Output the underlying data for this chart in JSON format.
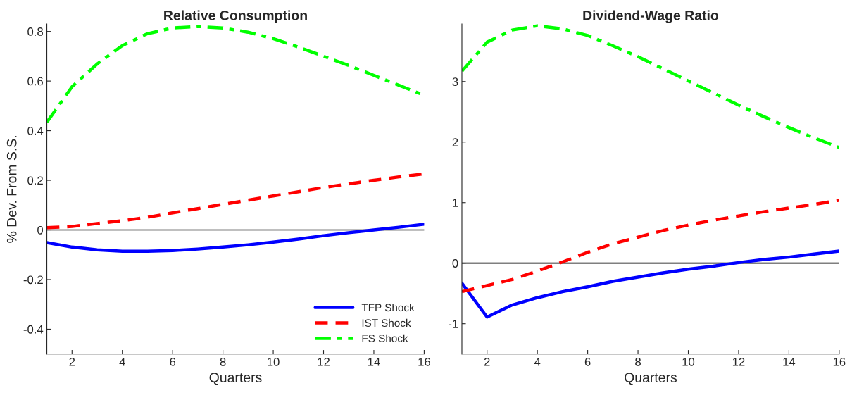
{
  "chart_data": [
    {
      "type": "line",
      "title": "Relative Consumption",
      "xlabel": "Quarters",
      "ylabel": "% Dev. From S.S.",
      "x": [
        1,
        2,
        3,
        4,
        5,
        6,
        7,
        8,
        9,
        10,
        11,
        12,
        13,
        14,
        15,
        16
      ],
      "series": [
        {
          "name": "TFP Shock",
          "color": "#0000ff",
          "line_style": "solid",
          "values": [
            -0.051,
            -0.069,
            -0.08,
            -0.086,
            -0.086,
            -0.083,
            -0.077,
            -0.069,
            -0.06,
            -0.049,
            -0.037,
            -0.023,
            -0.011,
            0.0,
            0.011,
            0.023
          ]
        },
        {
          "name": "IST Shock",
          "color": "#ff0000",
          "line_style": "dashed",
          "values": [
            0.009,
            0.014,
            0.026,
            0.037,
            0.051,
            0.069,
            0.086,
            0.103,
            0.12,
            0.137,
            0.154,
            0.171,
            0.186,
            0.2,
            0.214,
            0.226
          ]
        },
        {
          "name": "FS Shock",
          "color": "#00ff00",
          "line_style": "dashdot",
          "values": [
            0.434,
            0.577,
            0.669,
            0.743,
            0.791,
            0.814,
            0.82,
            0.814,
            0.797,
            0.771,
            0.737,
            0.7,
            0.663,
            0.623,
            0.583,
            0.543
          ]
        }
      ],
      "xlim": [
        1,
        16
      ],
      "xticks": [
        2,
        4,
        6,
        8,
        10,
        12,
        14,
        16
      ],
      "ylim": [
        -0.5,
        0.83
      ],
      "yticks": [
        -0.4,
        -0.2,
        0,
        0.2,
        0.4,
        0.6,
        0.8
      ],
      "ref_lines": [
        {
          "axis": "y",
          "value": 0,
          "color": "#000000"
        }
      ],
      "legend": "bottom right",
      "grid": false
    },
    {
      "type": "line",
      "title": "Dividend-Wage Ratio",
      "xlabel": "Quarters",
      "x": [
        1,
        2,
        3,
        4,
        5,
        6,
        7,
        8,
        9,
        10,
        11,
        12,
        13,
        14,
        15,
        16
      ],
      "series": [
        {
          "color": "#0000ff",
          "line_style": "solid",
          "values": [
            -0.33,
            -0.89,
            -0.69,
            -0.57,
            -0.47,
            -0.39,
            -0.3,
            -0.23,
            -0.16,
            -0.1,
            -0.05,
            0.01,
            0.06,
            0.1,
            0.15,
            0.2
          ]
        },
        {
          "color": "#ff0000",
          "line_style": "dashed",
          "values": [
            -0.47,
            -0.37,
            -0.27,
            -0.13,
            0.02,
            0.18,
            0.32,
            0.43,
            0.54,
            0.63,
            0.71,
            0.78,
            0.85,
            0.91,
            0.97,
            1.04
          ]
        },
        {
          "color": "#00ff00",
          "line_style": "dashdot",
          "values": [
            3.17,
            3.65,
            3.85,
            3.92,
            3.87,
            3.76,
            3.59,
            3.41,
            3.21,
            3.01,
            2.81,
            2.61,
            2.42,
            2.24,
            2.07,
            1.91
          ]
        }
      ],
      "xlim": [
        1,
        16
      ],
      "xticks": [
        2,
        4,
        6,
        8,
        10,
        12,
        14,
        16
      ],
      "ylim": [
        -1.5,
        3.95
      ],
      "yticks": [
        -1,
        0,
        1,
        2,
        3
      ],
      "ref_lines": [
        {
          "axis": "y",
          "value": 0,
          "color": "#000000"
        }
      ],
      "legend": false,
      "grid": false
    }
  ]
}
